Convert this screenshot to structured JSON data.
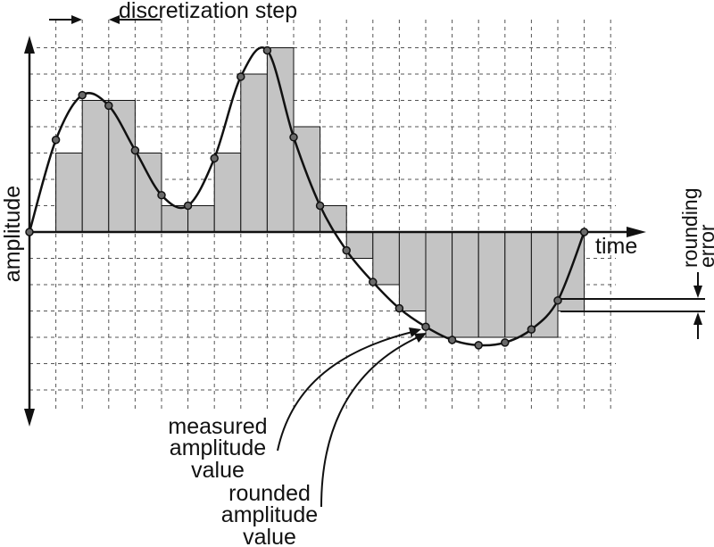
{
  "labels": {
    "discretization_step": "discretization step",
    "amplitude": "amplitude",
    "time": "time",
    "rounding": "rounding",
    "error": "error",
    "measured": [
      "measured",
      "amplitude",
      "value"
    ],
    "rounded": [
      "rounded",
      "amplitude",
      "value"
    ]
  },
  "samples": {
    "measured": [
      0,
      3.5,
      5.2,
      4.8,
      3.1,
      1.4,
      1.0,
      2.8,
      5.9,
      6.9,
      3.6,
      1.0,
      -0.7,
      -1.9,
      -2.9,
      -3.6,
      -4.1,
      -4.3,
      -4.2,
      -3.7,
      -2.6,
      0
    ],
    "rounded": [
      0,
      3,
      5,
      5,
      3,
      1,
      1,
      3,
      6,
      7,
      4,
      1,
      -1,
      -2,
      -3,
      -4,
      -4,
      -4,
      -4,
      -4,
      -3,
      0
    ]
  },
  "colors": {
    "bar_fill": "#c4c4c4",
    "line": "#111111",
    "grid": "#555555",
    "point": "#6a6a6a"
  }
}
